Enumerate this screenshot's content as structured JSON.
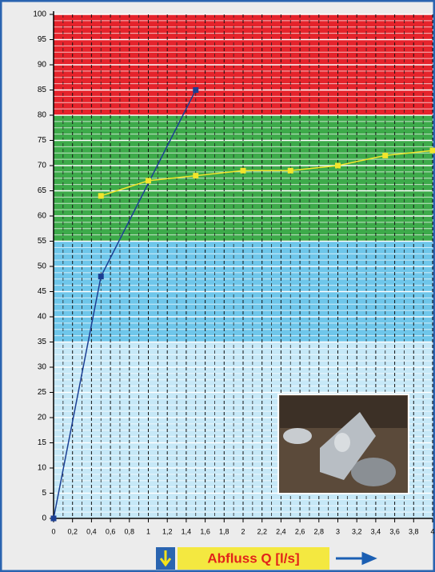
{
  "chart_data": {
    "type": "line",
    "x_label": "Abfluss Q [l/s]",
    "xlim": [
      0,
      4
    ],
    "ylim": [
      0,
      100
    ],
    "xticks": [
      0,
      {
        "value": 0.2,
        "label": "0,2"
      },
      {
        "value": 0.4,
        "label": "0,4"
      },
      {
        "value": 0.6,
        "label": "0,6"
      },
      {
        "value": 0.8,
        "label": "0,8"
      },
      1,
      {
        "value": 1.2,
        "label": "1,2"
      },
      {
        "value": 1.4,
        "label": "1,4"
      },
      {
        "value": 1.6,
        "label": "1,6"
      },
      {
        "value": 1.8,
        "label": "1,8"
      },
      2,
      {
        "value": 2.2,
        "label": "2,2"
      },
      {
        "value": 2.4,
        "label": "2,4"
      },
      {
        "value": 2.6,
        "label": "2,6"
      },
      {
        "value": 2.8,
        "label": "2,8"
      },
      3,
      {
        "value": 3.2,
        "label": "3,2"
      },
      {
        "value": 3.4,
        "label": "3,4"
      },
      {
        "value": 3.6,
        "label": "3,6"
      },
      {
        "value": 3.8,
        "label": "3,8"
      },
      4
    ],
    "yticks": [
      0,
      5,
      10,
      15,
      20,
      25,
      30,
      35,
      40,
      45,
      50,
      55,
      60,
      65,
      70,
      75,
      80,
      85,
      90,
      95,
      100
    ],
    "bands": [
      {
        "from": 80,
        "to": 100,
        "color": "#e5232b"
      },
      {
        "from": 55,
        "to": 80,
        "color": "#3daa4a"
      },
      {
        "from": 35,
        "to": 55,
        "color": "#6ec6ea"
      },
      {
        "from": 0,
        "to": 35,
        "color": "#c6e8f7"
      }
    ],
    "series": [
      {
        "color": "#1b3f93",
        "x": [
          0,
          0.5,
          1.5
        ],
        "values": [
          0,
          48,
          85
        ]
      },
      {
        "color": "#f2e52c",
        "x": [
          0.5,
          1,
          1.5,
          2,
          2.5,
          3,
          3.5,
          4
        ],
        "values": [
          64,
          67,
          68,
          69,
          69,
          70,
          72,
          73
        ]
      }
    ]
  }
}
